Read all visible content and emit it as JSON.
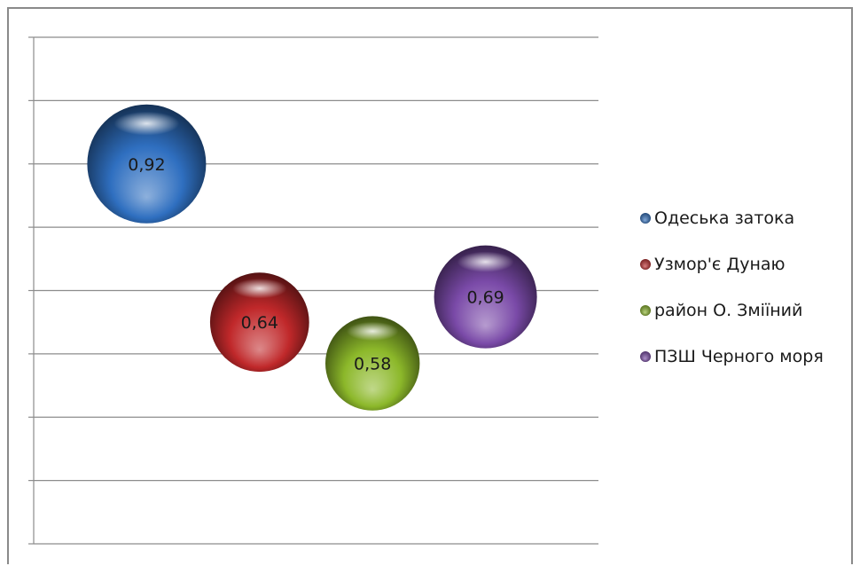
{
  "chart_data": {
    "type": "scatter",
    "title": "",
    "xlabel": "",
    "ylabel": "",
    "ylim": [
      0,
      1.6
    ],
    "xlim": [
      0,
      5
    ],
    "grid": true,
    "legend_position": "right",
    "series": [
      {
        "name": "Одеська затока",
        "x": 1,
        "y": 1.2,
        "value": "0,92",
        "size": 0.92,
        "color": "#2f6fc0"
      },
      {
        "name": "Узмор'є Дунаю",
        "x": 2,
        "y": 0.7,
        "value": "0,64",
        "size": 0.64,
        "color": "#c0282a"
      },
      {
        "name": "район О. Зміїний",
        "x": 3,
        "y": 0.57,
        "value": "0,58",
        "size": 0.58,
        "color": "#8cb82a"
      },
      {
        "name": "ПЗШ Черного моря",
        "x": 4,
        "y": 0.78,
        "value": "0,69",
        "size": 0.69,
        "color": "#7a4aa8"
      }
    ]
  }
}
